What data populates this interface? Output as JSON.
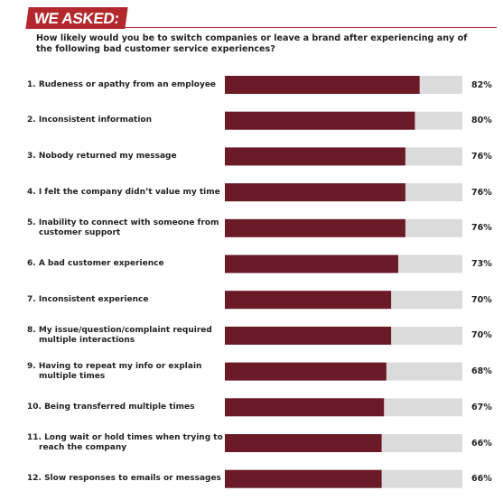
{
  "chart_data": {
    "type": "bar",
    "orientation": "horizontal",
    "title": "WE ASKED:",
    "subtitle": "How likely would you be to switch companies or leave a brand after experiencing any of the following bad customer service experiences?",
    "categories": [
      "1. Rudeness or apathy from an employee",
      "2. Inconsistent information",
      "3. Nobody returned my message",
      "4. I felt the company didn’t value my time",
      "5. Inability to connect with someone from customer support",
      "6. A bad customer experience",
      "7. Inconsistent experience",
      "8. My issue/question/complaint required multiple interactions",
      "9. Having to repeat my info or explain multiple times",
      "10. Being transferred multiple times",
      "11. Long wait or hold times when trying to reach the company",
      "12. Slow responses to emails or messages"
    ],
    "values": [
      82,
      80,
      76,
      76,
      76,
      73,
      70,
      70,
      68,
      67,
      66,
      66
    ],
    "value_labels": [
      "82%",
      "80%",
      "76%",
      "76%",
      "76%",
      "73%",
      "70%",
      "70%",
      "68%",
      "67%",
      "66%",
      "66%"
    ],
    "xlim": [
      0,
      100
    ],
    "color": "#6b1a28",
    "track_color": "#dcdbdb",
    "accent_color": "#b3282d"
  }
}
